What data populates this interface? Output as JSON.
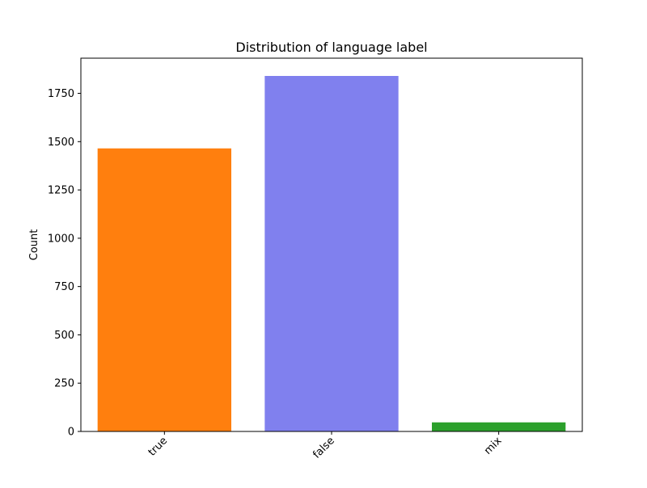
{
  "chart_data": {
    "type": "bar",
    "title": "Distribution of language label",
    "xlabel": "",
    "ylabel": "Count",
    "categories": [
      "true",
      "false",
      "mix"
    ],
    "values": [
      1465,
      1840,
      47
    ],
    "colors": [
      "#ff7f0e",
      "#8080ee",
      "#2ca02c"
    ],
    "ylim": [
      0,
      1932
    ],
    "yticks": [
      0,
      250,
      500,
      750,
      1000,
      1250,
      1500,
      1750
    ],
    "ytick_labels": [
      "0",
      "250",
      "500",
      "750",
      "1000",
      "1250",
      "1500",
      "1750"
    ],
    "xtick_rotation_deg": 45,
    "grid": false,
    "legend": false
  }
}
